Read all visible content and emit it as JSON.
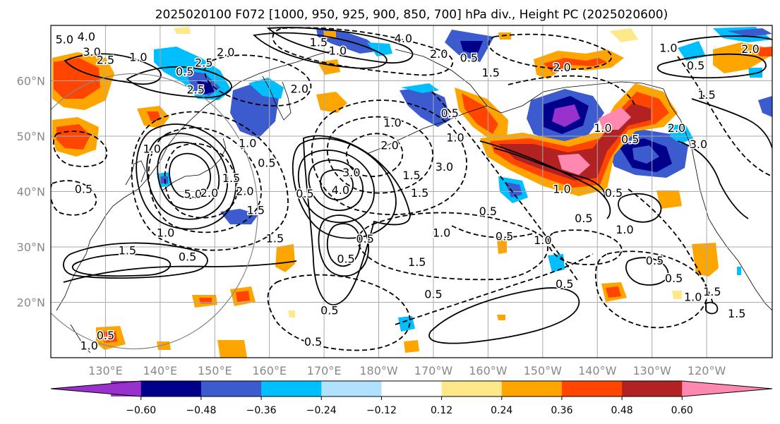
{
  "title": "2025020100 F072 [1000, 950, 925, 900, 850, 700] hPa div., Height PC (2025020600)",
  "map": {
    "lon_range": [
      120,
      252
    ],
    "lat_range": [
      10,
      70
    ],
    "lat_ticks": [
      {
        "lat": 20,
        "label": "20°N"
      },
      {
        "lat": 30,
        "label": "30°N"
      },
      {
        "lat": 40,
        "label": "40°N"
      },
      {
        "lat": 50,
        "label": "50°N"
      },
      {
        "lat": 60,
        "label": "60°N"
      }
    ],
    "lon_ticks": [
      {
        "lon": 130,
        "label": "130°E"
      },
      {
        "lon": 140,
        "label": "140°E"
      },
      {
        "lon": 150,
        "label": "150°E"
      },
      {
        "lon": 160,
        "label": "160°E"
      },
      {
        "lon": 170,
        "label": "170°E"
      },
      {
        "lon": 180,
        "label": "180°W"
      },
      {
        "lon": 190,
        "label": "170°W"
      },
      {
        "lon": 200,
        "label": "160°W"
      },
      {
        "lon": 210,
        "label": "150°W"
      },
      {
        "lon": 220,
        "label": "140°W"
      },
      {
        "lon": 230,
        "label": "130°W"
      },
      {
        "lon": 240,
        "label": "120°W"
      }
    ],
    "grid_color": "#aaaaaa"
  },
  "colorbar": {
    "colors": [
      "#9932cc",
      "#00008b",
      "#3b5bcf",
      "#00bfff",
      "#b0e2ff",
      "#ffffff",
      "#ffe88a",
      "#ffa500",
      "#ff4500",
      "#b22222",
      "#ff88b0"
    ],
    "tick_labels": [
      "−0.60",
      "−0.48",
      "−0.36",
      "−0.24",
      "−0.12",
      "0.12",
      "0.24",
      "0.36",
      "0.48",
      "0.60"
    ],
    "extend": "both"
  },
  "contour_labels": [
    {
      "lon": 122.5,
      "lat": 67.5,
      "text": "5.0"
    },
    {
      "lon": 126.5,
      "lat": 68.0,
      "text": "4.0"
    },
    {
      "lon": 127.5,
      "lat": 65.3,
      "text": "3.0"
    },
    {
      "lon": 130.0,
      "lat": 63.8,
      "text": "2.5"
    },
    {
      "lon": 136.0,
      "lat": 64.3,
      "text": "1.0"
    },
    {
      "lon": 144.5,
      "lat": 61.7,
      "text": "0.5"
    },
    {
      "lon": 148.0,
      "lat": 63.3,
      "text": "2.5"
    },
    {
      "lon": 152.0,
      "lat": 65.2,
      "text": "2.0"
    },
    {
      "lon": 146.5,
      "lat": 58.5,
      "text": "2.5"
    },
    {
      "lon": 165.5,
      "lat": 58.6,
      "text": "2.0"
    },
    {
      "lon": 169.0,
      "lat": 67.0,
      "text": "1.5"
    },
    {
      "lon": 172.5,
      "lat": 65.5,
      "text": "1.0"
    },
    {
      "lon": 184.5,
      "lat": 67.7,
      "text": "4.0"
    },
    {
      "lon": 191.0,
      "lat": 64.9,
      "text": "2.0"
    },
    {
      "lon": 196.5,
      "lat": 64.2,
      "text": "0.5"
    },
    {
      "lon": 200.5,
      "lat": 61.5,
      "text": "1.5"
    },
    {
      "lon": 213.5,
      "lat": 62.5,
      "text": "2.0"
    },
    {
      "lon": 233.0,
      "lat": 66.0,
      "text": "1.0"
    },
    {
      "lon": 238.0,
      "lat": 62.8,
      "text": "0.5"
    },
    {
      "lon": 240.0,
      "lat": 57.5,
      "text": "1.5"
    },
    {
      "lon": 248.0,
      "lat": 65.8,
      "text": "2.0"
    },
    {
      "lon": 234.5,
      "lat": 51.5,
      "text": "2.0"
    },
    {
      "lon": 238.5,
      "lat": 48.6,
      "text": "3.0"
    },
    {
      "lon": 221.0,
      "lat": 51.5,
      "text": "1.0"
    },
    {
      "lon": 226.0,
      "lat": 49.5,
      "text": "0.5"
    },
    {
      "lon": 213.5,
      "lat": 40.5,
      "text": "1.0"
    },
    {
      "lon": 223.0,
      "lat": 39.8,
      "text": "0.5"
    },
    {
      "lon": 225.0,
      "lat": 33.2,
      "text": "1.0"
    },
    {
      "lon": 217.5,
      "lat": 35.2,
      "text": "0.5"
    },
    {
      "lon": 210.0,
      "lat": 31.3,
      "text": "1.0"
    },
    {
      "lon": 203.0,
      "lat": 32.0,
      "text": "0.5"
    },
    {
      "lon": 200.0,
      "lat": 36.5,
      "text": "0.5"
    },
    {
      "lon": 191.5,
      "lat": 32.6,
      "text": "1.0"
    },
    {
      "lon": 187.0,
      "lat": 27.3,
      "text": "1.5"
    },
    {
      "lon": 190.0,
      "lat": 21.5,
      "text": "0.5"
    },
    {
      "lon": 214.0,
      "lat": 23.4,
      "text": "0.5"
    },
    {
      "lon": 230.5,
      "lat": 27.6,
      "text": "0.5"
    },
    {
      "lon": 234.0,
      "lat": 24.4,
      "text": "0.5"
    },
    {
      "lon": 237.5,
      "lat": 21.0,
      "text": "1.0"
    },
    {
      "lon": 241.0,
      "lat": 22.0,
      "text": "1.5"
    },
    {
      "lon": 245.5,
      "lat": 18.0,
      "text": "1.5"
    },
    {
      "lon": 193.0,
      "lat": 54.2,
      "text": "0.5"
    },
    {
      "lon": 182.5,
      "lat": 52.5,
      "text": "1.0"
    },
    {
      "lon": 194.0,
      "lat": 49.8,
      "text": "1.0"
    },
    {
      "lon": 182.0,
      "lat": 48.4,
      "text": "2.0"
    },
    {
      "lon": 186.0,
      "lat": 43.0,
      "text": "1.5"
    },
    {
      "lon": 192.0,
      "lat": 44.5,
      "text": "3.0"
    },
    {
      "lon": 187.5,
      "lat": 39.8,
      "text": "1.5"
    },
    {
      "lon": 175.0,
      "lat": 43.5,
      "text": "3.0"
    },
    {
      "lon": 173.0,
      "lat": 40.3,
      "text": "4.0"
    },
    {
      "lon": 177.5,
      "lat": 31.5,
      "text": "0.5"
    },
    {
      "lon": 174.0,
      "lat": 27.9,
      "text": "0.5"
    },
    {
      "lon": 166.5,
      "lat": 39.7,
      "text": "0.5"
    },
    {
      "lon": 171.0,
      "lat": 18.6,
      "text": "0.5"
    },
    {
      "lon": 168.0,
      "lat": 12.9,
      "text": "0.5"
    },
    {
      "lon": 157.5,
      "lat": 36.7,
      "text": "1.5"
    },
    {
      "lon": 161.0,
      "lat": 31.6,
      "text": "1.5"
    },
    {
      "lon": 156.0,
      "lat": 48.8,
      "text": "1.0"
    },
    {
      "lon": 159.5,
      "lat": 45.2,
      "text": "0.5"
    },
    {
      "lon": 153.0,
      "lat": 42.5,
      "text": "1.5"
    },
    {
      "lon": 155.5,
      "lat": 40.1,
      "text": "2.0"
    },
    {
      "lon": 146.0,
      "lat": 39.6,
      "text": "5.0"
    },
    {
      "lon": 149.0,
      "lat": 39.8,
      "text": "2.0"
    },
    {
      "lon": 138.5,
      "lat": 47.8,
      "text": "1.0"
    },
    {
      "lon": 141.0,
      "lat": 32.6,
      "text": "1.0"
    },
    {
      "lon": 134.0,
      "lat": 29.4,
      "text": "1.5"
    },
    {
      "lon": 145.0,
      "lat": 28.3,
      "text": "0.5"
    },
    {
      "lon": 126.0,
      "lat": 40.5,
      "text": "0.5"
    },
    {
      "lon": 130.0,
      "lat": 14.1,
      "text": "0.5"
    },
    {
      "lon": 127.0,
      "lat": 12.2,
      "text": "1.0"
    }
  ]
}
